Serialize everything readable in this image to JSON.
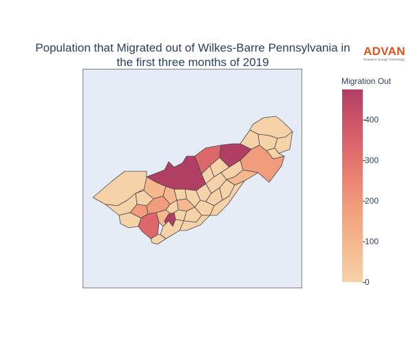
{
  "title": {
    "line1": "Population that Migrated out of Wilkes-Barre Pennsylvania in",
    "line2": "the first three months of 2019"
  },
  "logo": {
    "name": "ADVAN",
    "tagline": "Research through Technology",
    "color": "#e2501b"
  },
  "colorbar": {
    "title": "Migration Out",
    "min": 0,
    "max": 475,
    "ticks": [
      0,
      100,
      200,
      300,
      400
    ],
    "colorscale": [
      "#f6d2a9",
      "#f5b78e",
      "#f19c7c",
      "#ea8171",
      "#dd686c",
      "#ca5268",
      "#b13f64"
    ]
  },
  "map": {
    "background": "#e5ecf6",
    "border_color": "#444444"
  }
}
